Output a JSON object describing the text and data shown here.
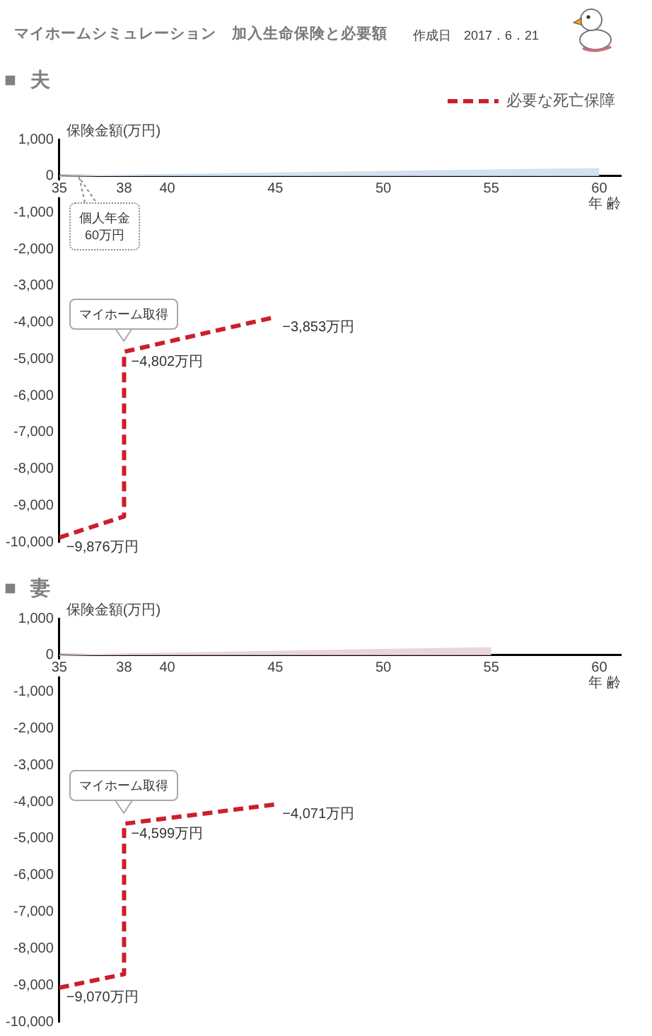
{
  "chart_data": [
    {
      "type": "other",
      "title": "マイホームシミュレーション　加入生命保険と必要額",
      "annotations": [
        "作成日　2017．6．21"
      ]
    },
    {
      "type": "line",
      "title": "■ 夫",
      "xlabel": "年 齢",
      "ylabel": "保険金額(万円)",
      "xlim": [
        35,
        61
      ],
      "xticks": [
        35,
        38,
        40,
        45,
        50,
        55,
        60
      ],
      "ylim": [
        -10000,
        1000
      ],
      "yticks": [
        {
          "value": -10000,
          "label": "-10,000"
        },
        {
          "value": -9000,
          "label": "-9,000"
        },
        {
          "value": -8000,
          "label": "-8,000"
        },
        {
          "value": -7000,
          "label": "-7,000"
        },
        {
          "value": -6000,
          "label": "-6,000"
        },
        {
          "value": -5000,
          "label": "-5,000"
        },
        {
          "value": -4000,
          "label": "-4,000"
        },
        {
          "value": -3000,
          "label": "-3,000"
        },
        {
          "value": -2000,
          "label": "-2,000"
        },
        {
          "value": -1000,
          "label": "-1,000"
        },
        0,
        {
          "value": 1000,
          "label": "1,000"
        }
      ],
      "legend": "top right",
      "marker": "none",
      "series": [
        {
          "type": "area",
          "color": "#d4e2ef",
          "x": [
            35,
            60
          ],
          "values": [
            0,
            200
          ]
        },
        {
          "name": "必要な死亡保障",
          "type": "line",
          "line_style": "dashed",
          "color": "#cc1e2b",
          "x": [
            35,
            38,
            38,
            45
          ],
          "values": [
            -9876,
            -9300,
            -4802,
            -3853
          ],
          "value_labels": [
            "−9,876万円",
            null,
            "−4,802万円",
            "−3,853万円"
          ]
        }
      ],
      "annotations": [
        "個人年金\n60万円",
        "マイホーム取得"
      ]
    },
    {
      "type": "line",
      "title": "■ 妻",
      "xlabel": "年 齢",
      "ylabel": "保険金額(万円)",
      "xlim": [
        35,
        61
      ],
      "xticks": [
        35,
        38,
        40,
        45,
        50,
        55,
        60
      ],
      "ylim": [
        -10000,
        1000
      ],
      "yticks": [
        {
          "value": -10000,
          "label": "-10,000"
        },
        {
          "value": -9000,
          "label": "-9,000"
        },
        {
          "value": -8000,
          "label": "-8,000"
        },
        {
          "value": -7000,
          "label": "-7,000"
        },
        {
          "value": -6000,
          "label": "-6,000"
        },
        {
          "value": -5000,
          "label": "-5,000"
        },
        {
          "value": -4000,
          "label": "-4,000"
        },
        {
          "value": -3000,
          "label": "-3,000"
        },
        {
          "value": -2000,
          "label": "-2,000"
        },
        {
          "value": -1000,
          "label": "-1,000"
        },
        0,
        {
          "value": 1000,
          "label": "1,000"
        }
      ],
      "marker": "none",
      "series": [
        {
          "type": "area",
          "color": "#ead6da",
          "x": [
            35,
            55
          ],
          "values": [
            0,
            200
          ]
        },
        {
          "type": "line",
          "line_style": "dashed",
          "color": "#cc1e2b",
          "x": [
            35,
            38,
            38,
            45
          ],
          "values": [
            -9070,
            -8700,
            -4599,
            -4071
          ],
          "value_labels": [
            "−9,070万円",
            null,
            "−4,599万円",
            "−4,071万円"
          ]
        }
      ],
      "annotations": [
        "マイホーム取得"
      ]
    }
  ]
}
